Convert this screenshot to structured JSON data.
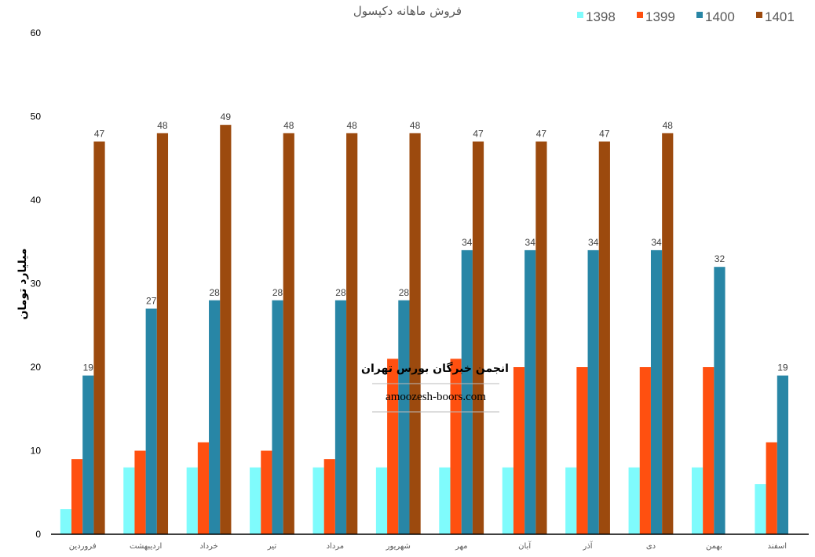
{
  "chart_data": {
    "type": "bar",
    "title": "فروش ماهانه دکپسول",
    "ylabel": "میلیارد تومان",
    "xlabel": "",
    "ylim": [
      0,
      60
    ],
    "yticks": [
      "0",
      "10",
      "20",
      "30",
      "40",
      "50",
      "60"
    ],
    "grid": false,
    "legend_position": "top-right",
    "categories": [
      "فروردین",
      "اردیبهشت",
      "خرداد",
      "تیر",
      "مرداد",
      "شهریور",
      "مهر",
      "آبان",
      "آذر",
      "دی",
      "بهمن",
      "اسفند"
    ],
    "series": [
      {
        "name": "1398",
        "color": "#7FFBFC",
        "labels": false,
        "values": [
          3,
          8,
          8,
          8,
          8,
          8,
          8,
          8,
          8,
          8,
          8,
          6
        ]
      },
      {
        "name": "1399",
        "color": "#FF5010",
        "labels": false,
        "values": [
          9,
          10,
          11,
          10,
          9,
          21,
          21,
          20,
          20,
          20,
          20,
          11
        ]
      },
      {
        "name": "1400",
        "color": "#2886A6",
        "labels": true,
        "values": [
          19,
          27,
          28,
          28,
          28,
          28,
          34,
          34,
          34,
          34,
          32,
          19
        ]
      },
      {
        "name": "1401",
        "color": "#9C4A0E",
        "labels": true,
        "values": [
          47,
          48,
          49,
          48,
          48,
          48,
          47,
          47,
          47,
          48,
          null,
          null
        ]
      }
    ]
  },
  "watermark": {
    "line1": "انجمن خبرگان بورس تهران",
    "line2": "amoozesh-boors.com"
  }
}
